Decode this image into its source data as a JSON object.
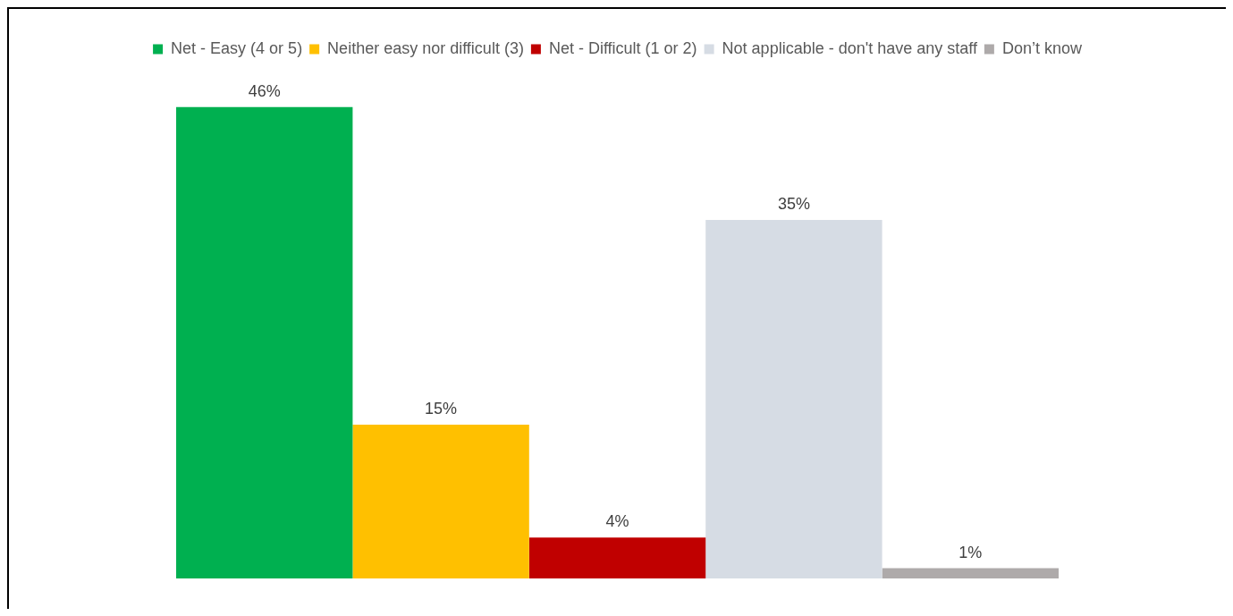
{
  "chart_data": {
    "type": "bar",
    "categories": [
      null
    ],
    "series": [
      {
        "name": "Net - Easy (4 or 5)",
        "color": "#00b050",
        "values": [
          46
        ],
        "value_labels": [
          "46%"
        ]
      },
      {
        "name": "Neither easy nor difficult (3)",
        "color": "#ffc000",
        "values": [
          15
        ],
        "value_labels": [
          "15%"
        ]
      },
      {
        "name": "Net - Difficult (1 or 2)",
        "color": "#c00000",
        "values": [
          4
        ],
        "value_labels": [
          "4%"
        ]
      },
      {
        "name": "Not applicable - don't have any staff",
        "color": "#d6dce4",
        "values": [
          35
        ],
        "value_labels": [
          "35%"
        ]
      },
      {
        "name": "Don’t know",
        "color": "#aeaaaa",
        "values": [
          1
        ],
        "value_labels": [
          "1%"
        ]
      }
    ],
    "legend": "top",
    "grid": false,
    "tick_labels": false
  }
}
